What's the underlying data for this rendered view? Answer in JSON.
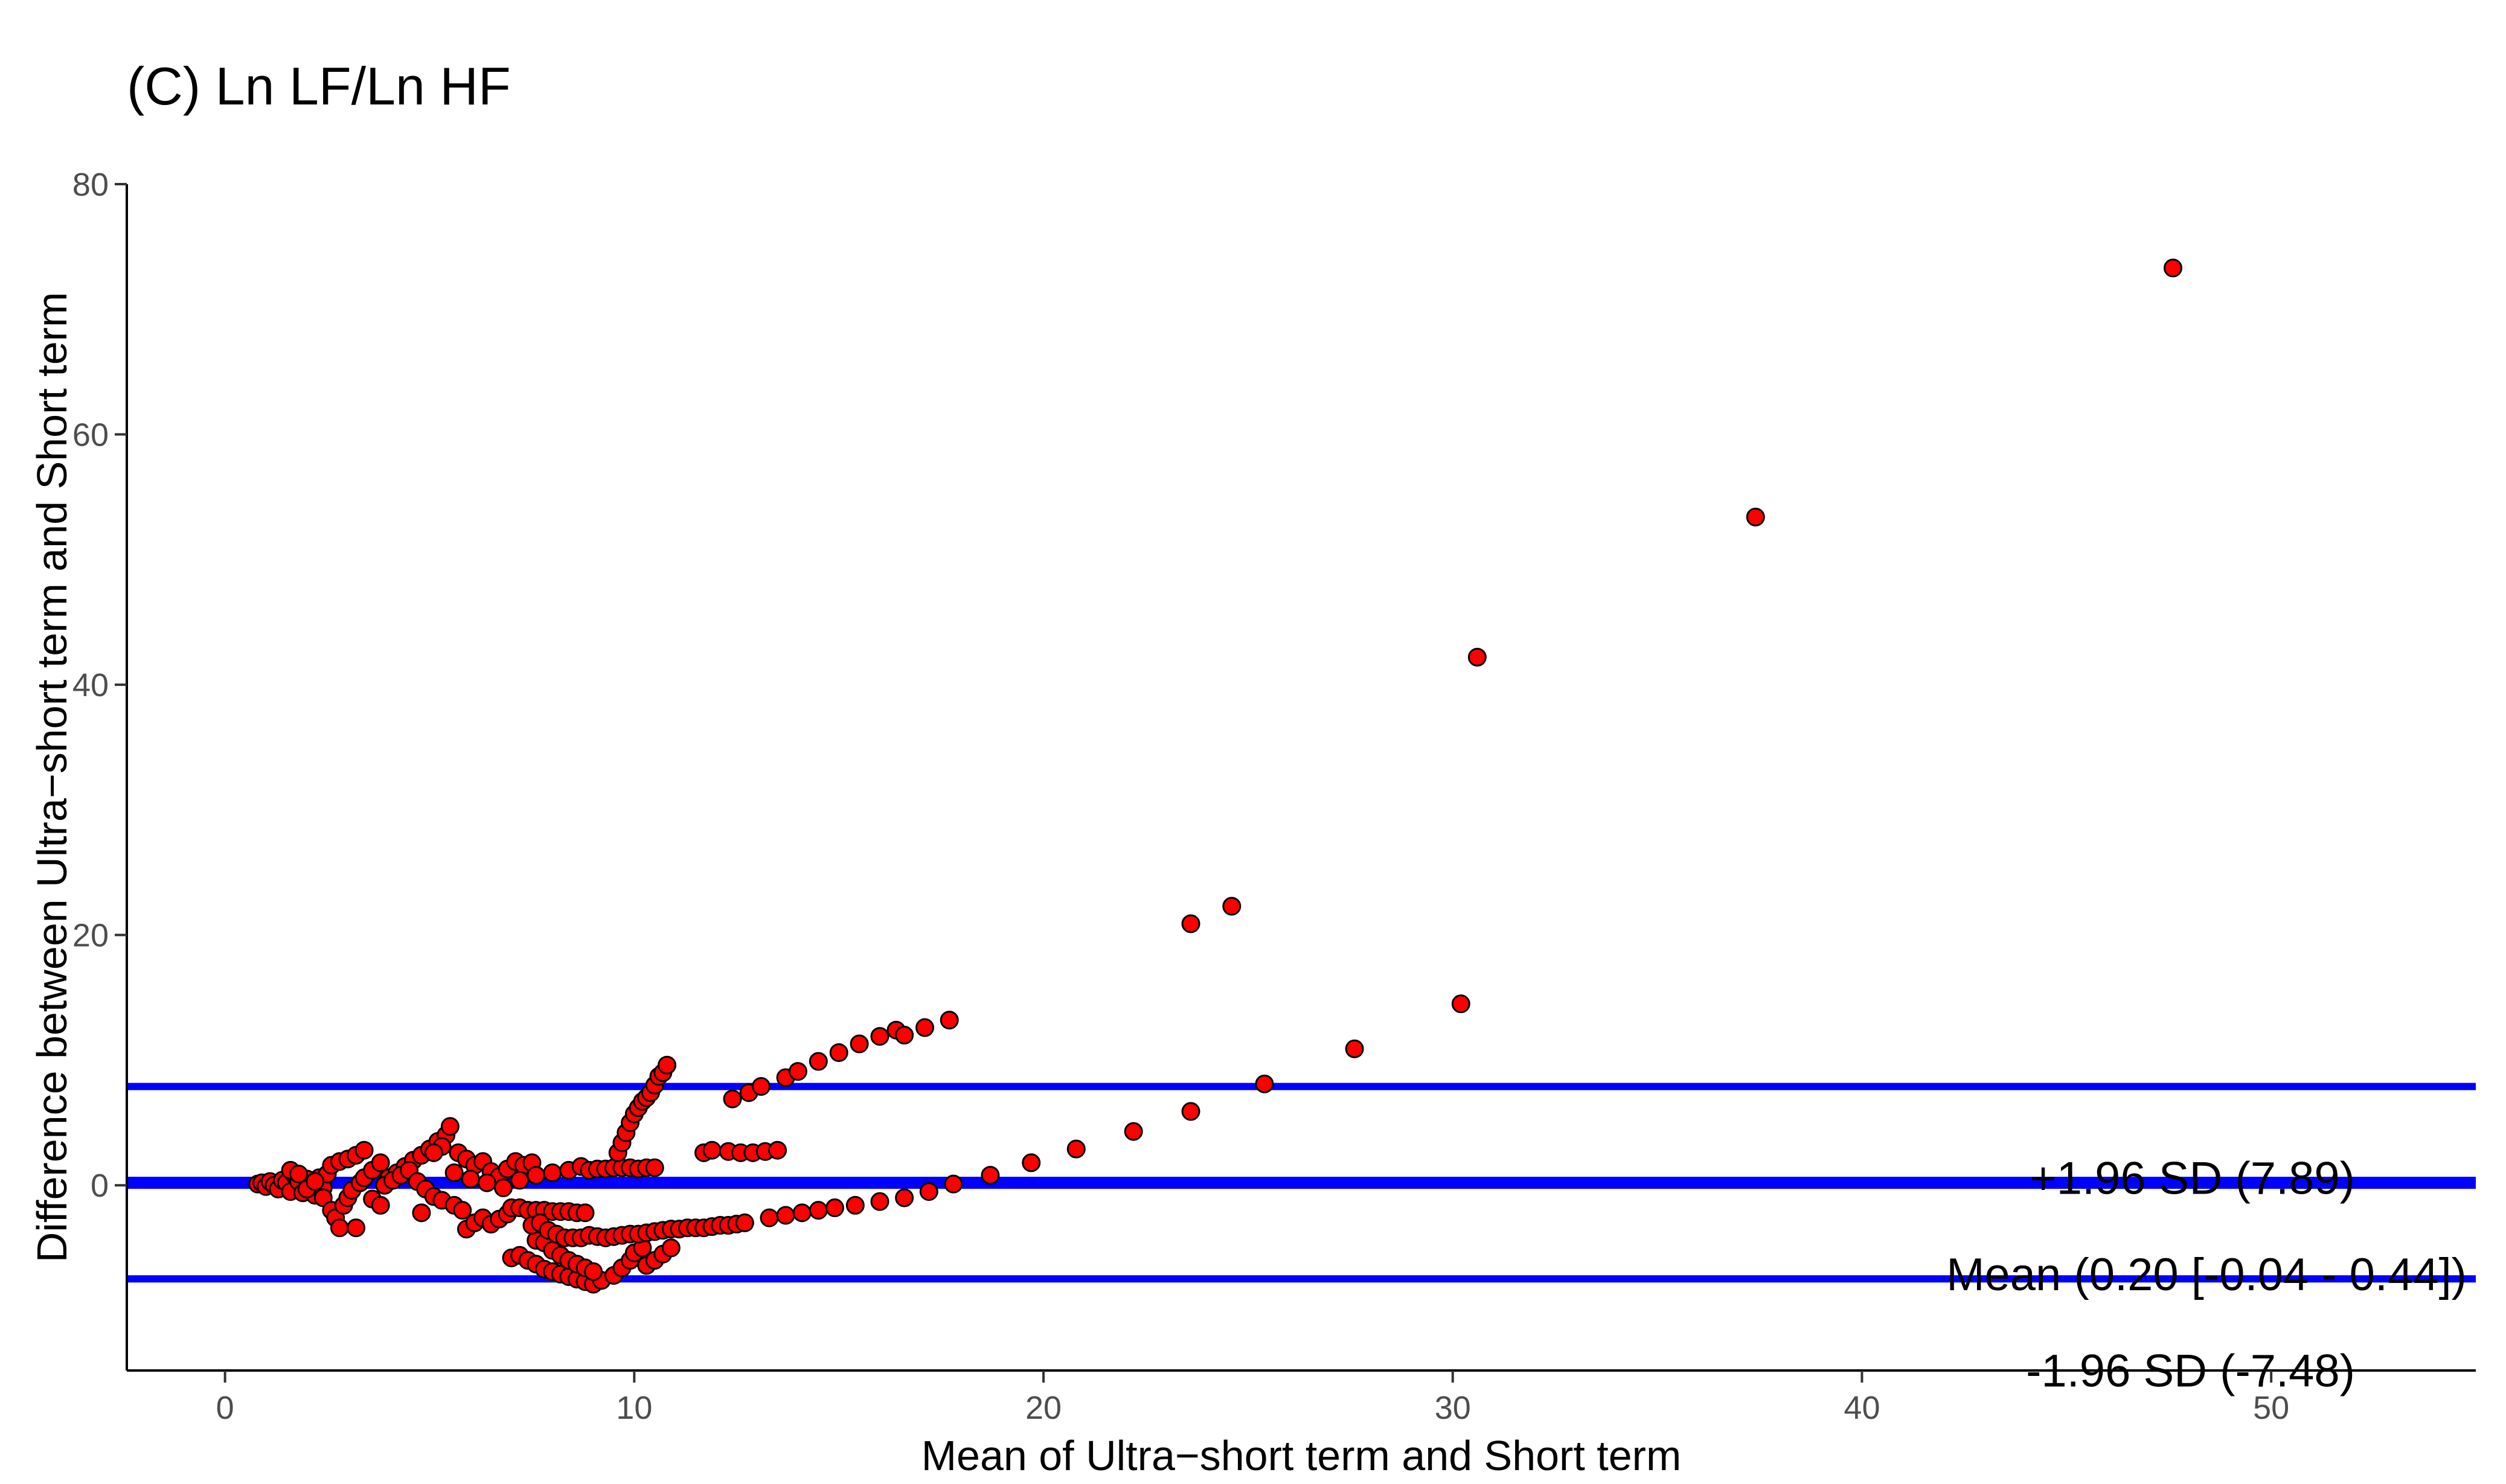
{
  "chart_data": {
    "type": "scatter",
    "title": "(C) Ln LF/Ln HF",
    "xlabel": "Mean of Ultra−short term and Short term",
    "ylabel": "Difference between Ultra−short term and Short term",
    "xlim": [
      -2.4,
      55
    ],
    "ylim": [
      -14.8,
      80
    ],
    "x_ticks": [
      0,
      10,
      20,
      30,
      40,
      50
    ],
    "y_ticks": [
      0,
      20,
      40,
      60,
      80
    ],
    "x_tick_labels": [
      "0",
      "10",
      "20",
      "30",
      "40",
      "50"
    ],
    "y_tick_labels": [
      "0",
      "20",
      "40",
      "60",
      "80"
    ],
    "grid": false,
    "legend": "none",
    "point_color": "#ff0000",
    "point_edge_color": "#000000",
    "line_color": "#0000ff",
    "reference_lines": [
      {
        "id": "upper",
        "label": "+1.96 SD (7.89)",
        "y": 7.89
      },
      {
        "id": "mean",
        "label": "Mean (0.20 [-0.04 -  0.44])",
        "y": 0.2
      },
      {
        "id": "lower",
        "label": "-1.96 SD (-7.48)",
        "y": -7.48
      }
    ],
    "points": [
      [
        0.8,
        0.1
      ],
      [
        0.9,
        0.2
      ],
      [
        1.0,
        -0.1
      ],
      [
        1.1,
        0.3
      ],
      [
        1.2,
        0.0
      ],
      [
        1.3,
        -0.3
      ],
      [
        1.4,
        0.4
      ],
      [
        1.5,
        0.2
      ],
      [
        1.6,
        -0.5
      ],
      [
        1.7,
        0.8
      ],
      [
        1.8,
        0.3
      ],
      [
        1.9,
        -0.6
      ],
      [
        2.0,
        0.5
      ],
      [
        2.1,
        0.1
      ],
      [
        2.2,
        -0.8
      ],
      [
        2.3,
        0.6
      ],
      [
        2.4,
        -0.2
      ],
      [
        2.5,
        0.9
      ],
      [
        1.6,
        1.2
      ],
      [
        1.8,
        0.9
      ],
      [
        2.0,
        -0.3
      ],
      [
        2.2,
        0.3
      ],
      [
        2.4,
        -1.0
      ],
      [
        2.6,
        -2.0
      ],
      [
        2.7,
        -2.6
      ],
      [
        2.8,
        -3.4
      ],
      [
        3.2,
        -3.4
      ],
      [
        2.9,
        -1.6
      ],
      [
        3.0,
        -1.0
      ],
      [
        3.1,
        -0.4
      ],
      [
        3.3,
        0.2
      ],
      [
        3.4,
        0.6
      ],
      [
        3.6,
        -1.1
      ],
      [
        3.8,
        -1.6
      ],
      [
        2.6,
        1.6
      ],
      [
        2.8,
        1.9
      ],
      [
        3.0,
        2.1
      ],
      [
        3.2,
        2.4
      ],
      [
        3.4,
        2.8
      ],
      [
        3.6,
        1.2
      ],
      [
        3.8,
        1.8
      ],
      [
        4.0,
        0.6
      ],
      [
        4.2,
        1.0
      ],
      [
        4.4,
        1.5
      ],
      [
        4.6,
        2.0
      ],
      [
        4.8,
        2.4
      ],
      [
        5.0,
        2.9
      ],
      [
        5.2,
        3.5
      ],
      [
        5.4,
        4.0
      ],
      [
        5.5,
        4.7
      ],
      [
        5.3,
        3.1
      ],
      [
        5.1,
        2.6
      ],
      [
        3.9,
        0.0
      ],
      [
        4.1,
        0.4
      ],
      [
        4.3,
        0.8
      ],
      [
        4.5,
        1.2
      ],
      [
        4.7,
        0.3
      ],
      [
        4.9,
        -0.3
      ],
      [
        5.1,
        -0.9
      ],
      [
        5.3,
        -1.2
      ],
      [
        4.8,
        -2.2
      ],
      [
        5.6,
        -1.6
      ],
      [
        5.8,
        -2.0
      ],
      [
        5.9,
        -3.5
      ],
      [
        6.1,
        -3.0
      ],
      [
        6.3,
        -2.6
      ],
      [
        6.5,
        -3.1
      ],
      [
        6.7,
        -2.7
      ],
      [
        6.9,
        -2.3
      ],
      [
        7.0,
        -1.8
      ],
      [
        5.7,
        2.6
      ],
      [
        5.9,
        2.1
      ],
      [
        6.1,
        1.6
      ],
      [
        6.3,
        1.9
      ],
      [
        6.5,
        1.1
      ],
      [
        6.7,
        0.7
      ],
      [
        6.9,
        1.3
      ],
      [
        7.1,
        1.9
      ],
      [
        7.3,
        1.6
      ],
      [
        7.5,
        1.8
      ],
      [
        5.6,
        1.0
      ],
      [
        6.0,
        0.5
      ],
      [
        6.4,
        0.2
      ],
      [
        6.8,
        -0.2
      ],
      [
        7.2,
        0.4
      ],
      [
        7.6,
        0.8
      ],
      [
        8.0,
        1.0
      ],
      [
        8.4,
        1.2
      ],
      [
        8.7,
        1.5
      ],
      [
        7.0,
        -5.8
      ],
      [
        7.2,
        -5.6
      ],
      [
        7.4,
        -6.0
      ],
      [
        7.6,
        -6.3
      ],
      [
        7.8,
        -6.7
      ],
      [
        8.0,
        -6.9
      ],
      [
        8.2,
        -7.1
      ],
      [
        8.4,
        -7.3
      ],
      [
        8.6,
        -7.5
      ],
      [
        8.8,
        -7.7
      ],
      [
        9.0,
        -7.9
      ],
      [
        9.2,
        -7.6
      ],
      [
        9.5,
        -7.2
      ],
      [
        9.7,
        -6.6
      ],
      [
        9.9,
        -6.0
      ],
      [
        10.0,
        -5.4
      ],
      [
        10.2,
        -5.0
      ],
      [
        7.6,
        -4.4
      ],
      [
        7.8,
        -4.6
      ],
      [
        8.0,
        -5.2
      ],
      [
        8.2,
        -5.6
      ],
      [
        8.4,
        -6.0
      ],
      [
        8.6,
        -6.3
      ],
      [
        8.8,
        -6.6
      ],
      [
        9.0,
        -6.9
      ],
      [
        10.3,
        -6.4
      ],
      [
        10.5,
        -6.0
      ],
      [
        10.7,
        -5.5
      ],
      [
        10.9,
        -5.0
      ],
      [
        7.2,
        -1.8
      ],
      [
        7.4,
        -2.0
      ],
      [
        7.6,
        -2.0
      ],
      [
        7.8,
        -2.0
      ],
      [
        8.0,
        -2.1
      ],
      [
        8.2,
        -2.1
      ],
      [
        8.4,
        -2.1
      ],
      [
        8.6,
        -2.2
      ],
      [
        8.8,
        -2.2
      ],
      [
        7.5,
        -3.2
      ],
      [
        7.7,
        -3.0
      ],
      [
        7.9,
        -3.6
      ],
      [
        8.1,
        -3.9
      ],
      [
        8.3,
        -4.2
      ],
      [
        8.5,
        -4.2
      ],
      [
        8.7,
        -4.2
      ],
      [
        8.9,
        -4.0
      ],
      [
        9.1,
        -4.1
      ],
      [
        9.3,
        -4.2
      ],
      [
        9.5,
        -4.1
      ],
      [
        9.7,
        -4.0
      ],
      [
        9.9,
        -3.9
      ],
      [
        10.1,
        -3.9
      ],
      [
        10.3,
        -3.8
      ],
      [
        10.5,
        -3.7
      ],
      [
        10.7,
        -3.6
      ],
      [
        10.9,
        -3.5
      ],
      [
        11.1,
        -3.5
      ],
      [
        11.3,
        -3.4
      ],
      [
        11.5,
        -3.4
      ],
      [
        11.7,
        -3.4
      ],
      [
        11.9,
        -3.3
      ],
      [
        12.1,
        -3.2
      ],
      [
        12.3,
        -3.2
      ],
      [
        12.5,
        -3.1
      ],
      [
        12.7,
        -3.0
      ],
      [
        13.3,
        -2.6
      ],
      [
        13.7,
        -2.4
      ],
      [
        14.1,
        -2.2
      ],
      [
        14.5,
        -2.0
      ],
      [
        14.9,
        -1.8
      ],
      [
        15.4,
        -1.6
      ],
      [
        16.0,
        -1.3
      ],
      [
        16.6,
        -1.0
      ],
      [
        17.2,
        -0.5
      ],
      [
        17.8,
        0.1
      ],
      [
        8.9,
        1.2
      ],
      [
        9.1,
        1.3
      ],
      [
        9.3,
        1.3
      ],
      [
        9.5,
        1.4
      ],
      [
        9.7,
        1.4
      ],
      [
        9.9,
        1.4
      ],
      [
        10.1,
        1.3
      ],
      [
        10.3,
        1.4
      ],
      [
        10.5,
        1.4
      ],
      [
        9.6,
        2.6
      ],
      [
        9.7,
        3.4
      ],
      [
        9.8,
        4.2
      ],
      [
        9.9,
        5.0
      ],
      [
        10.0,
        5.7
      ],
      [
        10.1,
        6.2
      ],
      [
        10.2,
        6.7
      ],
      [
        10.3,
        7.0
      ],
      [
        10.4,
        7.4
      ],
      [
        10.5,
        8.0
      ],
      [
        10.6,
        8.7
      ],
      [
        10.7,
        9.0
      ],
      [
        10.8,
        9.6
      ],
      [
        11.7,
        2.6
      ],
      [
        11.9,
        2.8
      ],
      [
        12.3,
        2.7
      ],
      [
        12.6,
        2.6
      ],
      [
        12.9,
        2.6
      ],
      [
        13.2,
        2.7
      ],
      [
        13.5,
        2.8
      ],
      [
        12.4,
        6.9
      ],
      [
        12.8,
        7.4
      ],
      [
        13.1,
        7.9
      ],
      [
        13.7,
        8.6
      ],
      [
        14.0,
        9.1
      ],
      [
        14.5,
        9.9
      ],
      [
        15.0,
        10.6
      ],
      [
        15.5,
        11.3
      ],
      [
        16.0,
        11.9
      ],
      [
        16.4,
        12.4
      ],
      [
        16.6,
        12.0
      ],
      [
        17.1,
        12.6
      ],
      [
        17.7,
        13.2
      ],
      [
        18.7,
        0.8
      ],
      [
        19.7,
        1.8
      ],
      [
        20.8,
        2.9
      ],
      [
        22.2,
        4.3
      ],
      [
        23.6,
        5.9
      ],
      [
        25.4,
        8.1
      ],
      [
        27.6,
        10.9
      ],
      [
        30.2,
        14.5
      ],
      [
        23.6,
        20.9
      ],
      [
        24.6,
        22.3
      ],
      [
        30.6,
        42.2
      ],
      [
        37.4,
        53.4
      ],
      [
        47.6,
        73.3
      ]
    ]
  }
}
